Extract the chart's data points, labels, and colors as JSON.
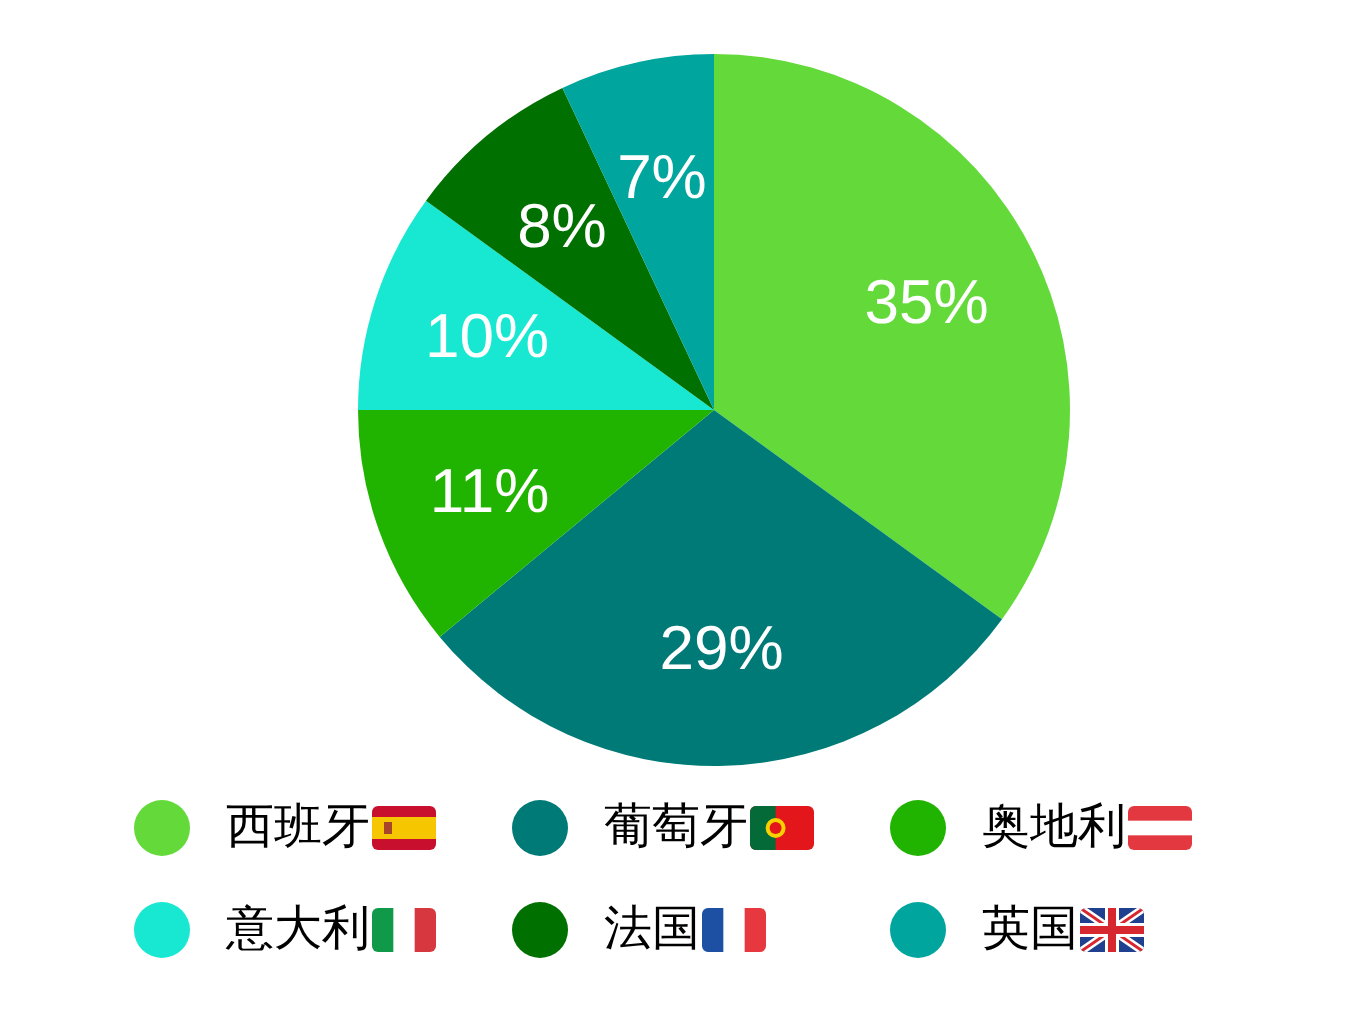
{
  "chart_data": {
    "type": "pie",
    "categories": [
      "西班牙",
      "葡萄牙",
      "奥地利",
      "意大利",
      "法国",
      "英国"
    ],
    "values": [
      35,
      29,
      11,
      10,
      8,
      7
    ],
    "colors": [
      "#63d93a",
      "#007a77",
      "#20b300",
      "#18e8d2",
      "#007000",
      "#00a69e"
    ],
    "value_labels": [
      "35%",
      "29%",
      "11%",
      "10%",
      "8%",
      "7%"
    ],
    "legend": "bottom"
  }
}
